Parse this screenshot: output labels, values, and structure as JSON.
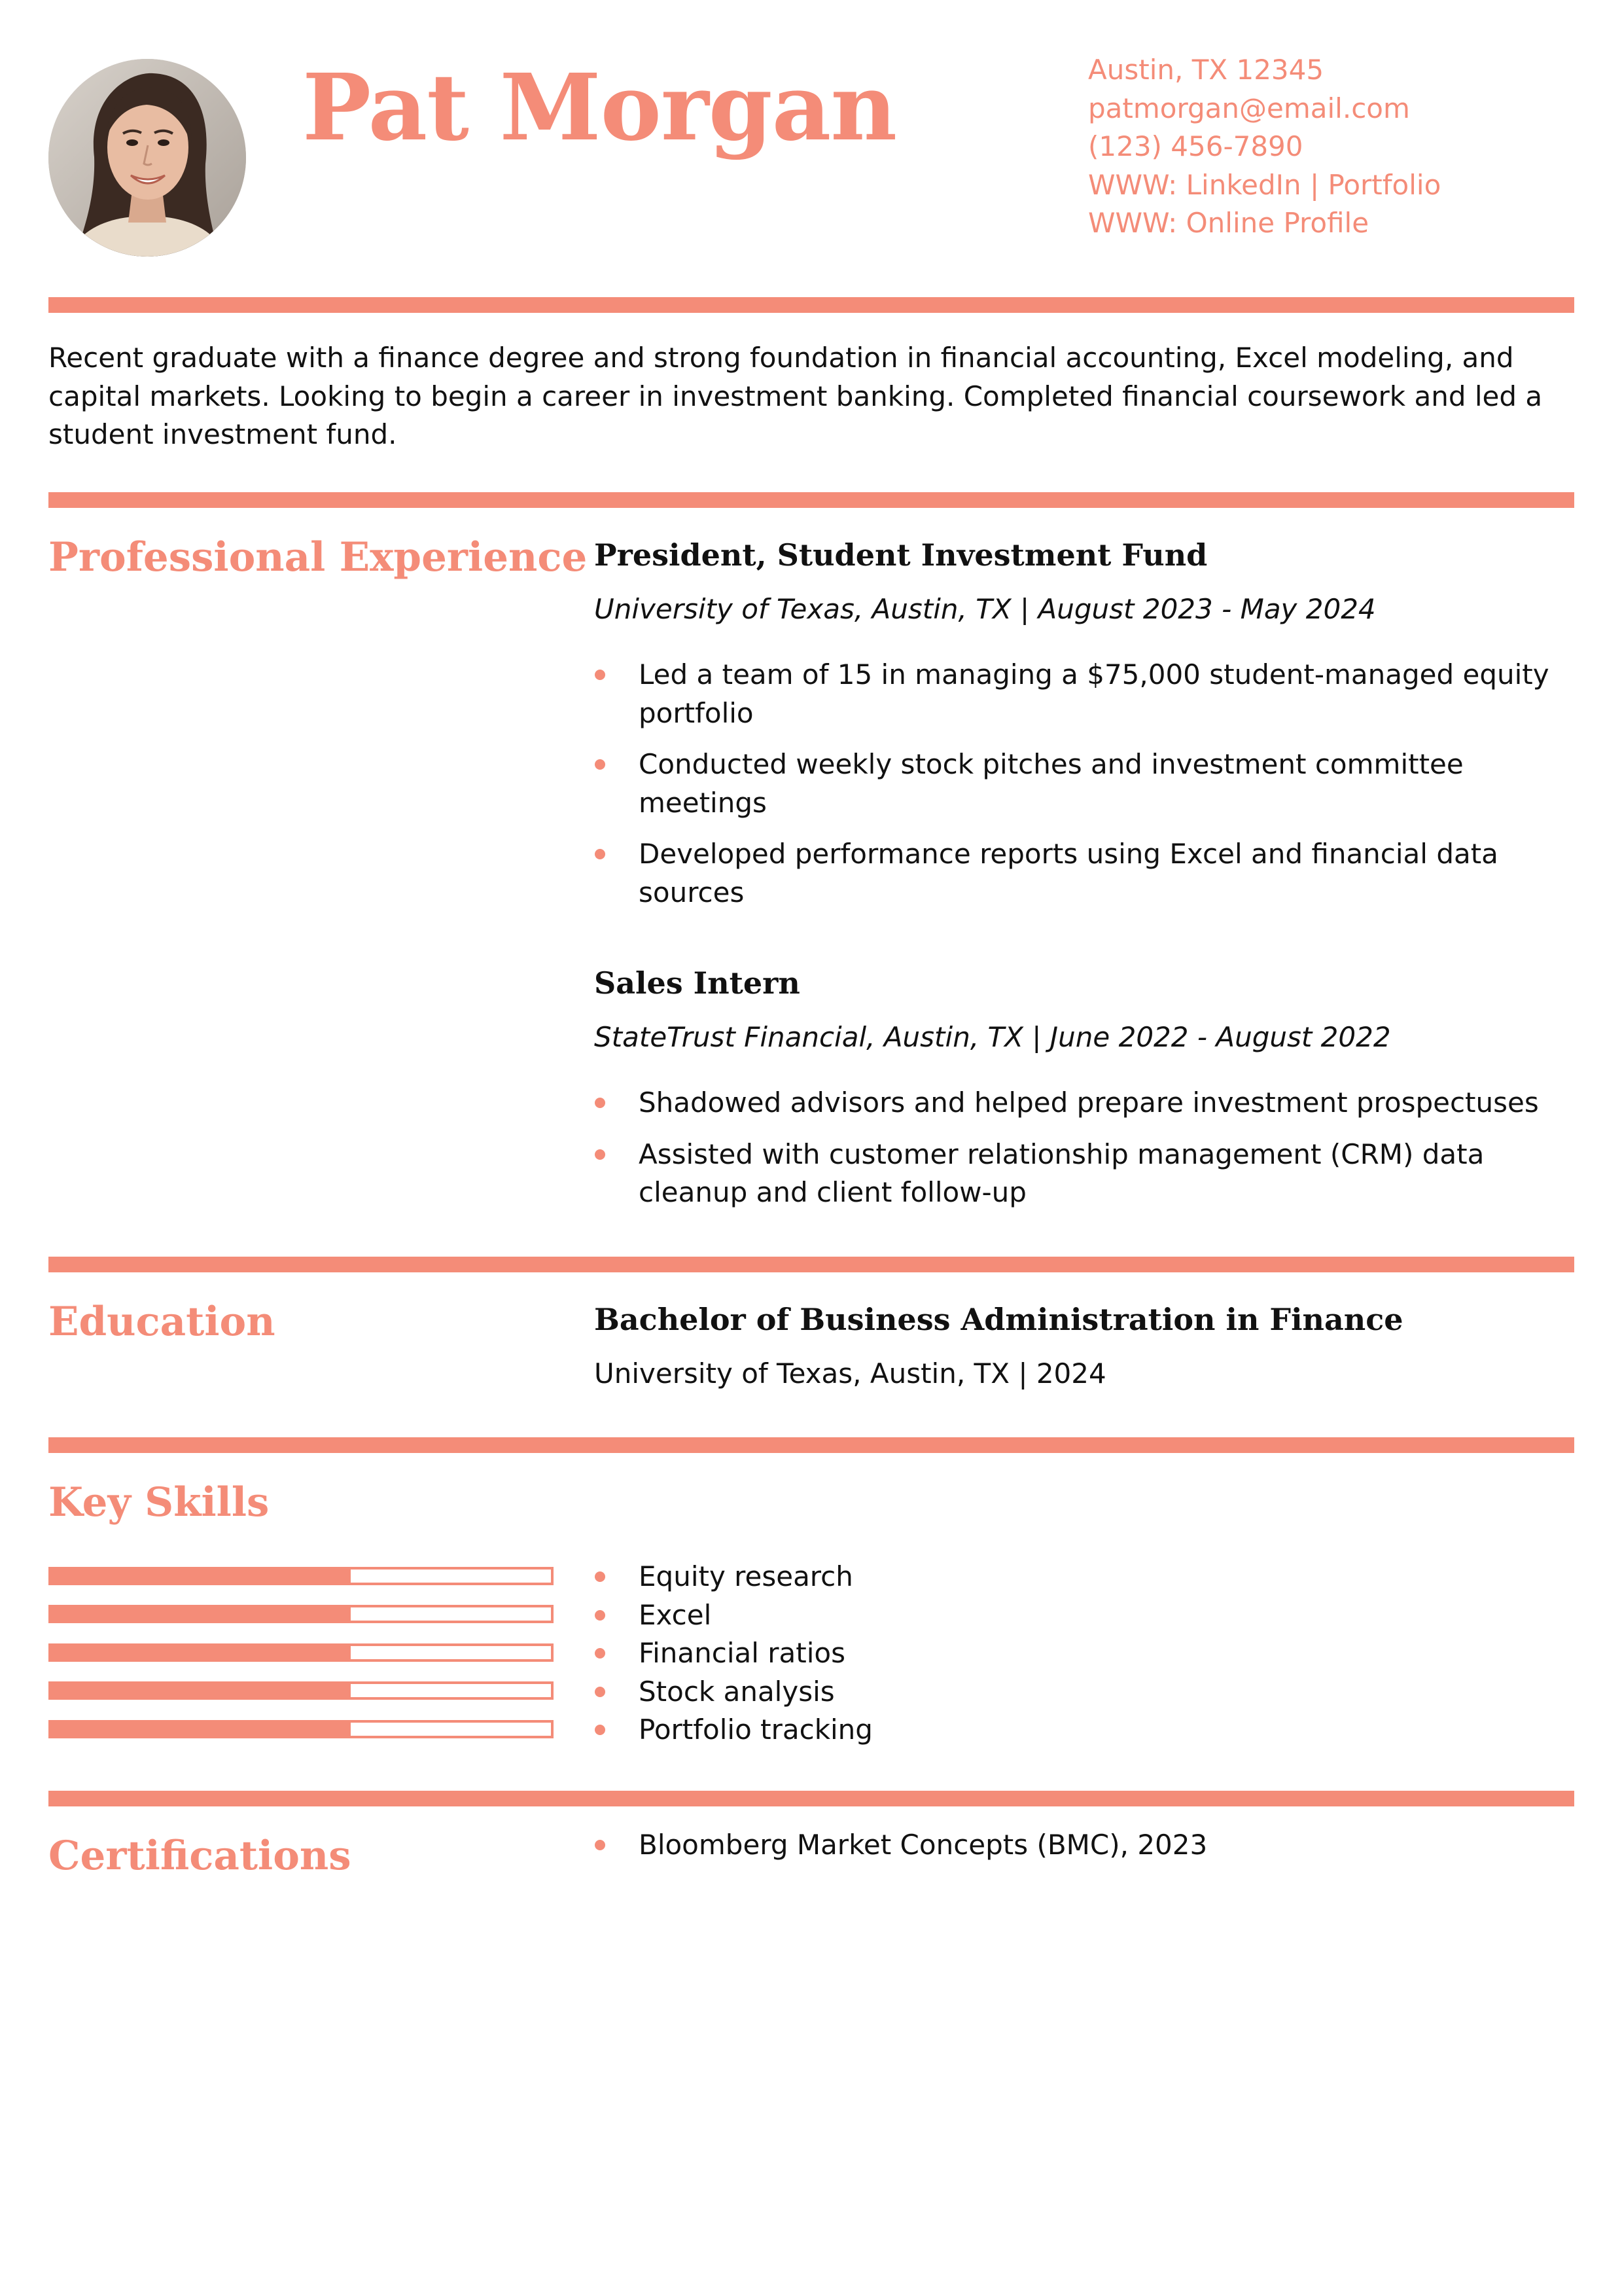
{
  "header": {
    "name": "Pat Morgan",
    "photo_alt": "Profile photo",
    "contact": {
      "address": "Austin, TX 12345",
      "email": "patmorgan@email.com",
      "phone": "(123) 456-7890",
      "links": "WWW: LinkedIn | Portfolio",
      "profile": "WWW: Online Profile"
    }
  },
  "summary": "Recent graduate with a finance degree and strong foundation in financial accounting, Excel modeling, and capital markets. Looking to begin a career in investment banking. Completed financial coursework and led a student investment fund.",
  "experience": {
    "heading": "Professional Experience",
    "jobs": [
      {
        "title": "President, Student Investment Fund",
        "org": "University of Texas",
        "details": ", Austin, TX | August 2023 - May 2024",
        "bullets": [
          "Led a team of 15 in managing a $75,000 student-managed equity portfolio",
          "Conducted weekly stock pitches and investment committee meetings",
          "Developed performance reports using Excel and financial data sources"
        ]
      },
      {
        "title": "Sales Intern",
        "org": "StateTrust Financial",
        "details": ", Austin, TX | June 2022 - August 2022",
        "bullets": [
          "Shadowed advisors and helped prepare investment prospectuses",
          "Assisted with customer relationship management (CRM) data cleanup and client follow-up"
        ]
      }
    ]
  },
  "education": {
    "heading": "Education",
    "degree": "Bachelor of Business Administration in Finance",
    "school": "University of Texas, Austin, TX | 2024"
  },
  "skills": {
    "heading": "Key Skills",
    "items": [
      {
        "label": "Equity research",
        "level": 0.6
      },
      {
        "label": "Excel",
        "level": 0.6
      },
      {
        "label": "Financial ratios",
        "level": 0.6
      },
      {
        "label": "Stock analysis",
        "level": 0.6
      },
      {
        "label": "Portfolio tracking",
        "level": 0.6
      }
    ]
  },
  "certifications": {
    "heading": "Certifications",
    "items": [
      "Bloomberg Market Concepts (BMC), 2023"
    ]
  },
  "colors": {
    "accent": "#f48c78",
    "text": "#111111"
  }
}
